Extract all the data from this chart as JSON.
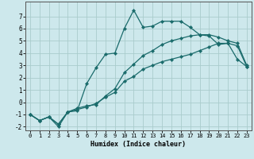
{
  "xlabel": "Humidex (Indice chaleur)",
  "ylabel": "",
  "background_color": "#cde8ec",
  "grid_color": "#aacccc",
  "line_color": "#1a6b6b",
  "xlim": [
    -0.5,
    23.5
  ],
  "ylim": [
    -2.3,
    8.2
  ],
  "xticks": [
    0,
    1,
    2,
    3,
    4,
    5,
    6,
    7,
    8,
    9,
    10,
    11,
    12,
    13,
    14,
    15,
    16,
    17,
    18,
    19,
    20,
    21,
    22,
    23
  ],
  "yticks": [
    -2,
    -1,
    0,
    1,
    2,
    3,
    4,
    5,
    6,
    7
  ],
  "curve2_x": [
    0,
    1,
    2,
    3,
    4,
    5,
    6,
    7,
    8,
    9,
    10,
    11,
    12,
    13,
    14,
    15,
    16,
    17,
    18,
    19,
    20,
    21,
    22,
    23
  ],
  "curve2_y": [
    -1.0,
    -1.5,
    -1.2,
    -2.0,
    -0.8,
    -0.7,
    1.5,
    2.8,
    3.9,
    4.0,
    6.0,
    7.5,
    6.1,
    6.2,
    6.6,
    6.6,
    6.6,
    6.1,
    5.5,
    5.4,
    4.7,
    4.8,
    3.5,
    2.9
  ],
  "curve1_x": [
    0,
    1,
    2,
    3,
    4,
    5,
    6,
    7,
    8,
    9,
    10,
    11,
    12,
    13,
    14,
    15,
    16,
    17,
    18,
    19,
    20,
    21,
    22,
    23
  ],
  "curve1_y": [
    -1.0,
    -1.5,
    -1.2,
    -1.8,
    -0.8,
    -0.5,
    -0.3,
    -0.2,
    0.5,
    1.1,
    2.4,
    3.1,
    3.8,
    4.2,
    4.7,
    5.0,
    5.2,
    5.4,
    5.5,
    5.5,
    5.3,
    5.0,
    4.8,
    3.0
  ],
  "curve3_x": [
    0,
    1,
    2,
    3,
    4,
    5,
    6,
    7,
    8,
    9,
    10,
    11,
    12,
    13,
    14,
    15,
    16,
    17,
    18,
    19,
    20,
    21,
    22,
    23
  ],
  "curve3_y": [
    -1.0,
    -1.5,
    -1.2,
    -1.8,
    -0.8,
    -0.6,
    -0.4,
    -0.1,
    0.4,
    0.8,
    1.7,
    2.1,
    2.7,
    3.0,
    3.3,
    3.5,
    3.7,
    3.9,
    4.2,
    4.5,
    4.8,
    4.8,
    4.6,
    2.9
  ]
}
